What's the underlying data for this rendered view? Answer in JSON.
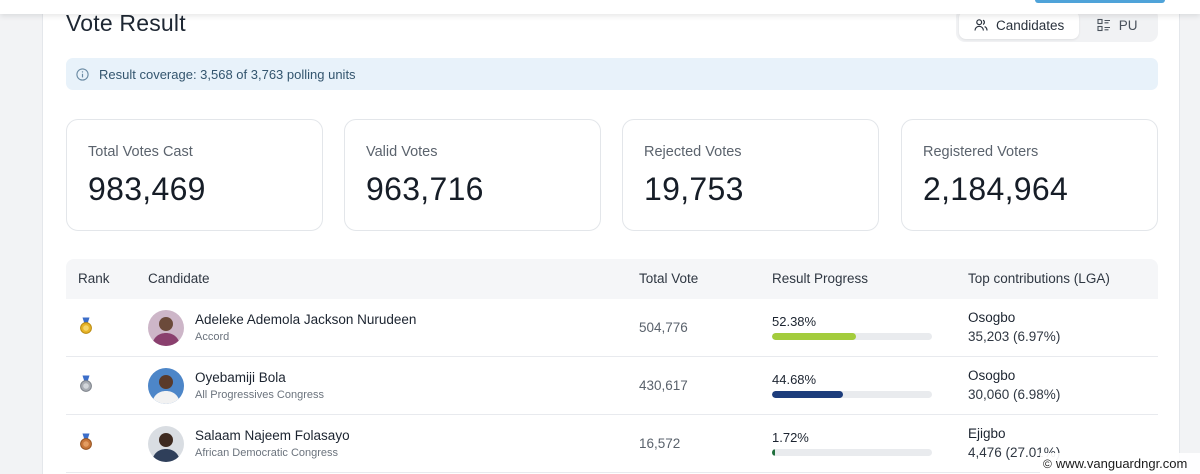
{
  "header": {
    "title": "Vote Result",
    "tabs": [
      {
        "label": "Candidates",
        "active": true
      },
      {
        "label": "PU",
        "active": false
      }
    ]
  },
  "coverage": {
    "text": "Result coverage: 3,568 of 3,763 polling units"
  },
  "stats": [
    {
      "label": "Total Votes Cast",
      "value": "983,469"
    },
    {
      "label": "Valid Votes",
      "value": "963,716"
    },
    {
      "label": "Rejected Votes",
      "value": "19,753"
    },
    {
      "label": "Registered Voters",
      "value": "2,184,964"
    }
  ],
  "table": {
    "columns": [
      "Rank",
      "Candidate",
      "Total Vote",
      "Result Progress",
      "Top contributions (LGA)"
    ],
    "rows": [
      {
        "rank_icon": "gold-medal-icon",
        "name": "Adeleke Ademola Jackson Nurudeen",
        "party": "Accord",
        "total_vote": "504,776",
        "progress_label": "52.38%",
        "progress": 52.38,
        "bar_color": "#a3cc3c",
        "lga": "Osogbo",
        "lga_value": "35,203 (6.97%)"
      },
      {
        "rank_icon": "silver-medal-icon",
        "name": "Oyebamiji Bola",
        "party": "All Progressives Congress",
        "total_vote": "430,617",
        "progress_label": "44.68%",
        "progress": 44.68,
        "bar_color": "#1d3d7c",
        "lga": "Osogbo",
        "lga_value": "30,060 (6.98%)"
      },
      {
        "rank_icon": "bronze-medal-icon",
        "name": "Salaam Najeem Folasayo",
        "party": "African Democratic Congress",
        "total_vote": "16,572",
        "progress_label": "1.72%",
        "progress": 1.72,
        "bar_color": "#1f6f3c",
        "lga": "Ejigbo",
        "lga_value": "4,476 (27.01%)"
      }
    ]
  },
  "watermark": {
    "symbol": "©",
    "text": "www.vanguardngr.com"
  }
}
